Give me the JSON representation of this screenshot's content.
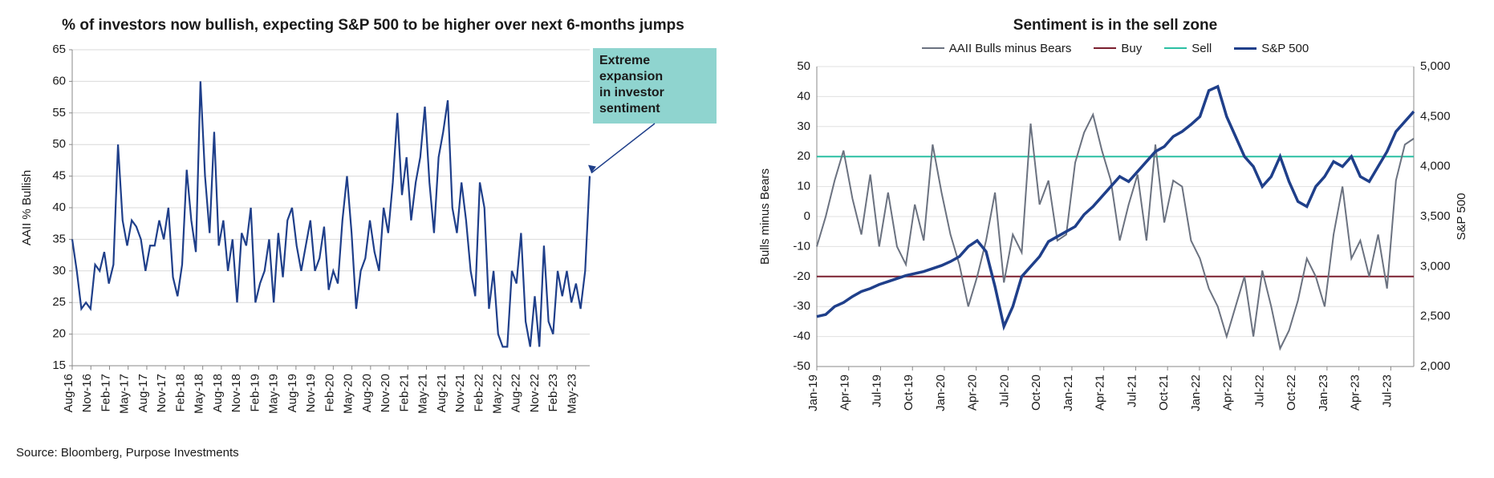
{
  "source_text": "Source: Bloomberg, Purpose Investments",
  "left_chart": {
    "type": "line",
    "title": "% of investors now bullish, expecting S&P 500 to be higher over next 6-months jumps",
    "title_fontsize": 19,
    "ylabel": "AAII % Bullish",
    "label_fontsize": 15,
    "ylim": [
      15,
      65
    ],
    "ytick_step": 5,
    "grid_color": "#d9d9d9",
    "line_color": "#1f3f8a",
    "line_width": 2.2,
    "background_color": "#ffffff",
    "annotation": {
      "text": "Extreme expansion in investor sentiment",
      "box_fill": "#8fd4cf",
      "box_border": "#8fd4cf",
      "text_color": "#1a1a1a",
      "font_size": 16,
      "arrow_color": "#1f3f8a"
    },
    "x_labels": [
      "Aug-16",
      "Nov-16",
      "Feb-17",
      "May-17",
      "Aug-17",
      "Nov-17",
      "Feb-18",
      "May-18",
      "Aug-18",
      "Nov-18",
      "Feb-19",
      "May-19",
      "Aug-19",
      "Nov-19",
      "Feb-20",
      "May-20",
      "Aug-20",
      "Nov-20",
      "Feb-21",
      "May-21",
      "Aug-21",
      "Nov-21",
      "Feb-22",
      "May-22",
      "Aug-22",
      "Nov-22",
      "Feb-23",
      "May-23"
    ],
    "values": [
      35,
      30,
      24,
      25,
      24,
      31,
      30,
      33,
      28,
      31,
      50,
      38,
      34,
      38,
      37,
      35,
      30,
      34,
      34,
      38,
      35,
      40,
      29,
      26,
      31,
      46,
      38,
      33,
      60,
      45,
      36,
      52,
      34,
      38,
      30,
      35,
      25,
      36,
      34,
      40,
      25,
      28,
      30,
      35,
      25,
      36,
      29,
      38,
      40,
      34,
      30,
      34,
      38,
      30,
      32,
      37,
      27,
      30,
      28,
      38,
      45,
      36,
      24,
      30,
      32,
      38,
      33,
      30,
      40,
      36,
      44,
      55,
      42,
      48,
      38,
      44,
      48,
      56,
      44,
      36,
      48,
      52,
      57,
      40,
      36,
      44,
      38,
      30,
      26,
      44,
      40,
      24,
      30,
      20,
      18,
      18,
      30,
      28,
      36,
      22,
      18,
      26,
      18,
      34,
      22,
      20,
      30,
      26,
      30,
      25,
      28,
      24,
      30,
      45
    ]
  },
  "right_chart": {
    "type": "line-dual-axis",
    "title": "Sentiment is in the sell zone",
    "title_fontsize": 19,
    "legend": [
      {
        "label": "AAII Bulls minus Bears",
        "color": "#6b7280",
        "width": 2
      },
      {
        "label": "Buy",
        "color": "#7a1f2e",
        "width": 2
      },
      {
        "label": "Sell",
        "color": "#2bbfa3",
        "width": 2
      },
      {
        "label": "S&P 500",
        "color": "#1f3f8a",
        "width": 3.5
      }
    ],
    "y_left_label": "Bulls minus Bears",
    "y_right_label": "S&P 500",
    "label_fontsize": 15,
    "y_left_lim": [
      -50,
      50
    ],
    "y_left_tick_step": 10,
    "y_right_lim": [
      2000,
      5000
    ],
    "y_right_tick_step": 500,
    "grid_color": "#e0e0e0",
    "background_color": "#ffffff",
    "x_labels": [
      "Jan-19",
      "Apr-19",
      "Jul-19",
      "Oct-19",
      "Jan-20",
      "Apr-20",
      "Jul-20",
      "Oct-20",
      "Jan-21",
      "Apr-21",
      "Jul-21",
      "Oct-21",
      "Jan-22",
      "Apr-22",
      "Jul-22",
      "Oct-22",
      "Jan-23",
      "Apr-23",
      "Jul-23"
    ],
    "buy_threshold": -20,
    "sell_threshold": 20,
    "series_bulls_bears": [
      -10,
      0,
      12,
      22,
      6,
      -6,
      14,
      -10,
      8,
      -10,
      -16,
      4,
      -8,
      24,
      8,
      -6,
      -16,
      -30,
      -20,
      -8,
      8,
      -22,
      -6,
      -12,
      31,
      4,
      12,
      -8,
      -6,
      18,
      28,
      34,
      22,
      12,
      -8,
      4,
      14,
      -8,
      24,
      -2,
      12,
      10,
      -8,
      -14,
      -24,
      -30,
      -40,
      -30,
      -20,
      -40,
      -18,
      -30,
      -44,
      -38,
      -28,
      -14,
      -20,
      -30,
      -6,
      10,
      -14,
      -8,
      -20,
      -6,
      -24,
      12,
      24,
      26
    ],
    "series_sp500": [
      2500,
      2520,
      2600,
      2640,
      2700,
      2750,
      2780,
      2820,
      2850,
      2880,
      2910,
      2930,
      2950,
      2980,
      3010,
      3050,
      3100,
      3200,
      3260,
      3150,
      2800,
      2400,
      2600,
      2900,
      3000,
      3100,
      3250,
      3300,
      3350,
      3400,
      3520,
      3600,
      3700,
      3800,
      3900,
      3850,
      3950,
      4050,
      4150,
      4200,
      4300,
      4350,
      4420,
      4500,
      4760,
      4800,
      4500,
      4300,
      4100,
      4000,
      3800,
      3900,
      4100,
      3850,
      3650,
      3600,
      3800,
      3900,
      4050,
      4000,
      4100,
      3900,
      3850,
      4000,
      4150,
      4350,
      4450,
      4550
    ]
  }
}
